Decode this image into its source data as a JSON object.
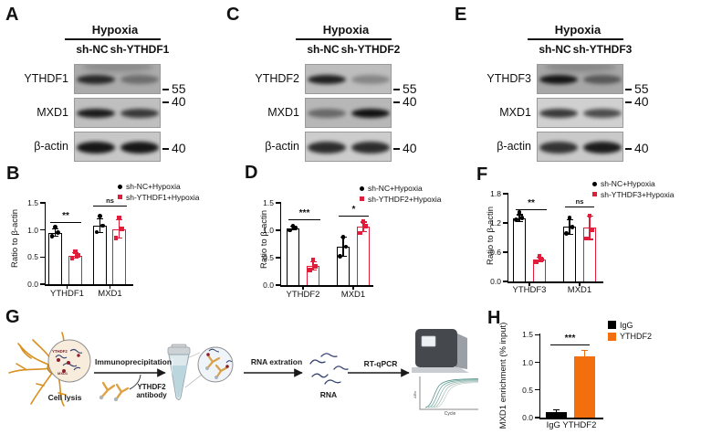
{
  "colors": {
    "red": "#e01e3c",
    "orange": "#f36f0d",
    "black": "#000000"
  },
  "western_panels": [
    {
      "letter": "A",
      "treatment": "Hypoxia",
      "lanes": [
        "sh-NC",
        "sh-YTHDF1"
      ],
      "rows": [
        {
          "protein": "YTHDF1",
          "marker": "55",
          "bands": [
            0.82,
            0.38
          ],
          "bg": "#ababab",
          "smear": true
        },
        {
          "protein": "MXD1",
          "marker": "40",
          "bands": [
            0.9,
            0.74
          ],
          "bg": "#bfbfbf",
          "smear": false
        },
        {
          "protein": "β-actin",
          "marker": "40",
          "bands": [
            0.93,
            0.93
          ],
          "bg": "#c7c7c7",
          "smear": false
        }
      ]
    },
    {
      "letter": "C",
      "treatment": "Hypoxia",
      "lanes": [
        "sh-NC",
        "sh-YTHDF2"
      ],
      "rows": [
        {
          "protein": "YTHDF2",
          "marker": "55",
          "bands": [
            0.88,
            0.3
          ],
          "bg": "#bdbdbd",
          "smear": false
        },
        {
          "protein": "MXD1",
          "marker": "40",
          "bands": [
            0.45,
            0.96
          ],
          "bg": "#b7b7b7",
          "smear": false
        },
        {
          "protein": "β-actin",
          "marker": "40",
          "bands": [
            0.82,
            0.82
          ],
          "bg": "#cccccc",
          "smear": false
        }
      ]
    },
    {
      "letter": "E",
      "treatment": "Hypoxia",
      "lanes": [
        "sh-NC",
        "sh-YTHDF3"
      ],
      "rows": [
        {
          "protein": "YTHDF3",
          "marker": "55",
          "bands": [
            0.93,
            0.5
          ],
          "bg": "#a7a7a7",
          "smear": true
        },
        {
          "protein": "MXD1",
          "marker": "40",
          "bands": [
            0.76,
            0.66
          ],
          "bg": "#d0d0d0",
          "smear": false
        },
        {
          "protein": "β-actin",
          "marker": "40",
          "bands": [
            0.78,
            0.9
          ],
          "bg": "#c9c9c9",
          "smear": false
        }
      ]
    }
  ],
  "chart_data": [
    {
      "panel": "B",
      "type": "bar",
      "ylabel": "Ratio to β-actin",
      "ylim": [
        0,
        1.5
      ],
      "yticks": [
        0.0,
        0.5,
        1.0,
        1.5
      ],
      "categories": [
        "YTHDF1",
        "MXD1"
      ],
      "series": [
        {
          "name": "sh-NC+Hypoxia",
          "marker": "circle",
          "color": "#000000",
          "values": [
            0.95,
            1.08
          ],
          "errors": [
            0.08,
            0.14
          ],
          "points": [
            [
              0.88,
              0.95,
              1.06
            ],
            [
              0.96,
              1.08,
              1.25
            ]
          ]
        },
        {
          "name": "sh-YTHDF1+Hypoxia",
          "marker": "square",
          "color": "#e01e3c",
          "values": [
            0.53,
            1.02
          ],
          "errors": [
            0.06,
            0.18
          ],
          "points": [
            [
              0.48,
              0.53,
              0.6
            ],
            [
              0.85,
              1.02,
              1.22
            ]
          ]
        }
      ],
      "significance": [
        {
          "category": "YTHDF1",
          "label": "**"
        },
        {
          "category": "MXD1",
          "label": "ns"
        }
      ]
    },
    {
      "panel": "D",
      "type": "bar",
      "ylabel": "Ratio to β-actin",
      "ylim": [
        0,
        1.5
      ],
      "yticks": [
        0.0,
        0.5,
        1.0,
        1.5
      ],
      "categories": [
        "YTHDF2",
        "MXD1"
      ],
      "series": [
        {
          "name": "sh-NC+Hypoxia",
          "marker": "circle",
          "color": "#000000",
          "values": [
            1.04,
            0.7
          ],
          "errors": [
            0.04,
            0.18
          ],
          "points": [
            [
              1.0,
              1.04,
              1.08
            ],
            [
              0.52,
              0.7,
              0.88
            ]
          ]
        },
        {
          "name": "sh-YTHDF2+Hypoxia",
          "marker": "square",
          "color": "#e01e3c",
          "values": [
            0.35,
            1.06
          ],
          "errors": [
            0.08,
            0.1
          ],
          "points": [
            [
              0.28,
              0.34,
              0.46
            ],
            [
              0.95,
              1.08,
              1.16
            ]
          ]
        }
      ],
      "significance": [
        {
          "category": "YTHDF2",
          "label": "***"
        },
        {
          "category": "MXD1",
          "label": "*"
        }
      ]
    },
    {
      "panel": "F",
      "type": "bar",
      "ylabel": "Ratio to β-actin",
      "ylim": [
        0,
        1.8
      ],
      "yticks": [
        0.0,
        0.6,
        1.2,
        1.8
      ],
      "categories": [
        "YTHDF3",
        "MXD1"
      ],
      "series": [
        {
          "name": "sh-NC+Hypoxia",
          "marker": "circle",
          "color": "#000000",
          "values": [
            1.3,
            1.12
          ],
          "errors": [
            0.08,
            0.16
          ],
          "points": [
            [
              1.26,
              1.3,
              1.42
            ],
            [
              0.98,
              1.12,
              1.3
            ]
          ]
        },
        {
          "name": "sh-YTHDF3+Hypoxia",
          "marker": "square",
          "color": "#e01e3c",
          "values": [
            0.45,
            1.1
          ],
          "errors": [
            0.06,
            0.25
          ],
          "points": [
            [
              0.4,
              0.45,
              0.52
            ],
            [
              0.88,
              1.05,
              1.35
            ]
          ]
        }
      ],
      "significance": [
        {
          "category": "YTHDF3",
          "label": "**"
        },
        {
          "category": "MXD1",
          "label": "ns"
        }
      ]
    },
    {
      "panel": "H",
      "type": "bar",
      "ylabel": "MXD1 enrichment (% input)",
      "ylim": [
        0,
        1.5
      ],
      "yticks": [
        0.0,
        0.5,
        1.0,
        1.5
      ],
      "categories": [
        "IgG",
        "YTHDF2"
      ],
      "xtick_label": "IgG YTHDF2",
      "bars": [
        {
          "label": "IgG",
          "value": 0.1,
          "error": 0.05,
          "color": "#000000"
        },
        {
          "label": "YTHDF2",
          "value": 1.1,
          "error": 0.13,
          "color": "#f36f0d"
        }
      ],
      "legend": [
        {
          "label": "IgG",
          "color": "#000000"
        },
        {
          "label": "YTHDF2",
          "color": "#f36f0d"
        }
      ],
      "significance": [
        {
          "label": "***"
        }
      ]
    }
  ],
  "workflow": {
    "letter": "G",
    "labels": {
      "cell_lysis": "Cell lysis",
      "immunoprecipitation": "Immunoprecipitation",
      "antibody": "YTHDF2 antibody",
      "rna_extraction": "RNA extration",
      "rna": "RNA",
      "rtqpcr": "RT-qPCR"
    },
    "inset_labels": {
      "ythdf2": "YTHDF2",
      "mxd1": "MXD1"
    },
    "qpcr_plot": {
      "xlabel": "Cycle",
      "ylabel": "ΔRn"
    }
  }
}
